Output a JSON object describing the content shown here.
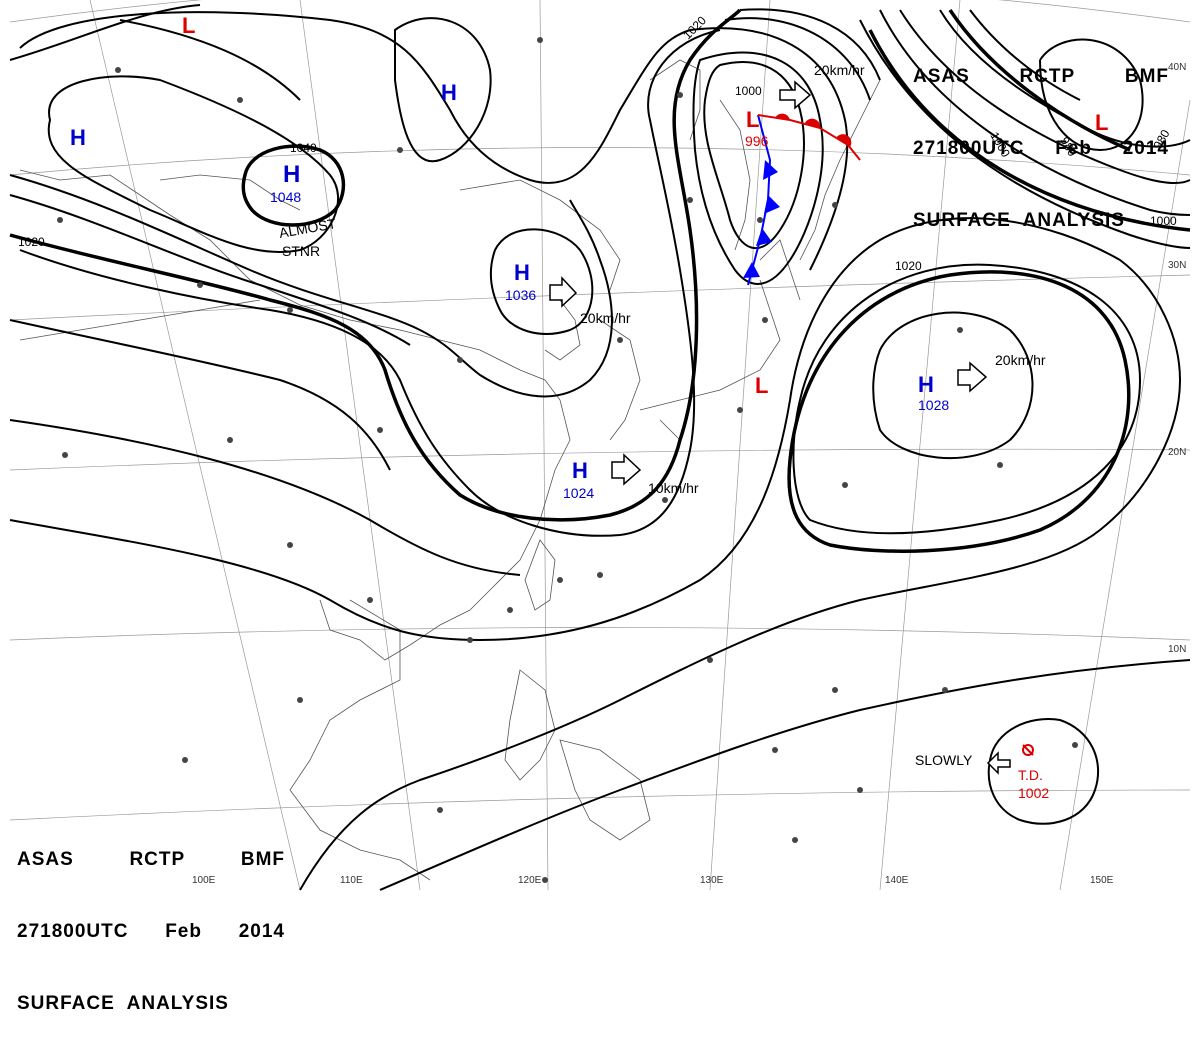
{
  "header": {
    "line1": [
      "ASAS",
      "RCTP",
      "BMF"
    ],
    "line2": [
      "271800UTC",
      "Feb",
      "2014"
    ],
    "line3": "SURFACE  ANALYSIS"
  },
  "pressure_centers": [
    {
      "type": "H",
      "value": "1048",
      "color": "#0000cc"
    },
    {
      "type": "H",
      "value": "1036",
      "color": "#0000cc"
    },
    {
      "type": "H",
      "value": "1024",
      "color": "#0000cc"
    },
    {
      "type": "H",
      "value": "1028",
      "color": "#0000cc"
    },
    {
      "type": "H",
      "value": "",
      "color": "#0000cc"
    },
    {
      "type": "H",
      "value": "",
      "color": "#0000cc"
    },
    {
      "type": "L",
      "value": "996",
      "color": "#dd0000"
    },
    {
      "type": "L",
      "value": "",
      "color": "#dd0000"
    },
    {
      "type": "L",
      "value": "",
      "color": "#dd0000"
    },
    {
      "type": "L",
      "value": "",
      "color": "#dd0000"
    }
  ],
  "tropical_depression": {
    "label": "T.D.",
    "value": "1002",
    "color": "#dd0000"
  },
  "motions": [
    "20km/hr",
    "20km/hr",
    "20km/hr",
    "10km/hr",
    "SLOWLY"
  ],
  "annotations": {
    "stationary": [
      "ALMOST",
      "STNR"
    ]
  },
  "isobar_labels": [
    "1040",
    "1020",
    "1020",
    "1020",
    "1000",
    "1000",
    "980",
    "980",
    "1000"
  ],
  "lat_labels": [
    "30N",
    "20N",
    "10N",
    "40N"
  ],
  "lon_labels": [
    "100E",
    "110E",
    "120E",
    "130E",
    "140E",
    "150E"
  ]
}
